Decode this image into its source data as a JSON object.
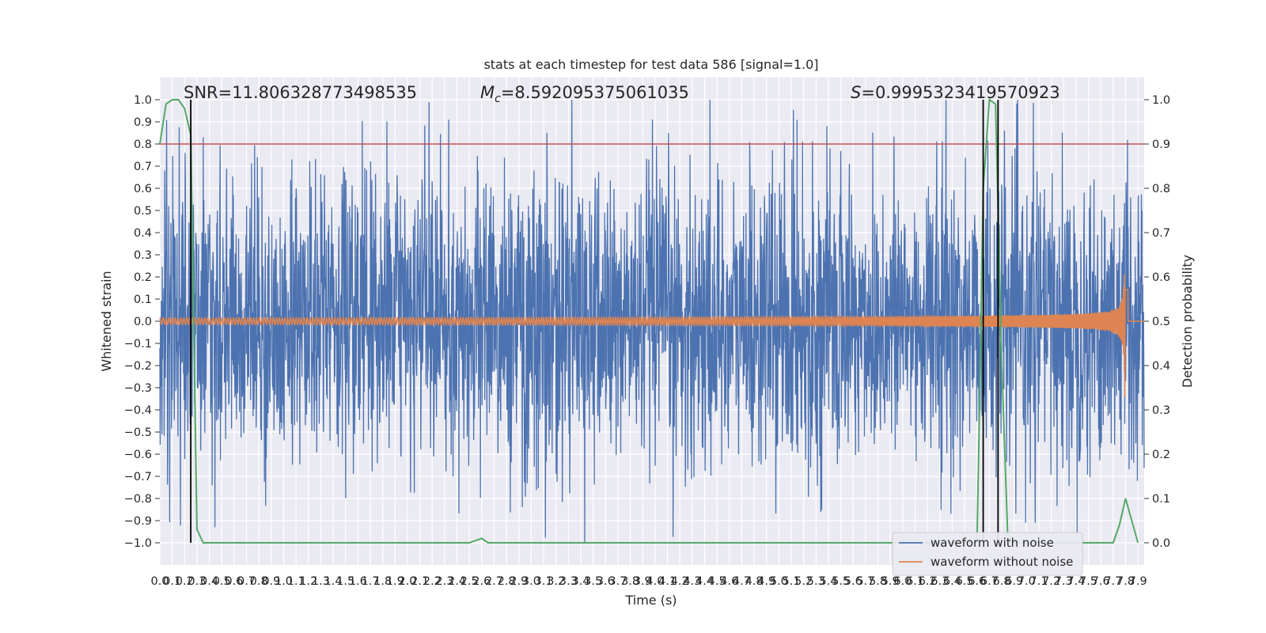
{
  "chart_data": {
    "type": "line",
    "title": "stats at each timestep for test data 586 [signal=1.0]",
    "xlabel": "Time (s)",
    "ylabel": "Whitened strain",
    "y2label": "Detection probability",
    "xlim": [
      0.0,
      7.95
    ],
    "ylim": [
      -1.1,
      1.1
    ],
    "y2lim": [
      -0.05,
      1.05
    ],
    "x_ticks": [
      0.0,
      0.1,
      0.2,
      0.3,
      0.4,
      0.5,
      0.6,
      0.7,
      0.8,
      0.9,
      1.0,
      1.1,
      1.2,
      1.3,
      1.4,
      1.5,
      1.6,
      1.7,
      1.8,
      1.9,
      2.0,
      2.1,
      2.2,
      2.3,
      2.4,
      2.5,
      2.6,
      2.7,
      2.8,
      2.9,
      3.0,
      3.1,
      3.2,
      3.3,
      3.4,
      3.5,
      3.6,
      3.7,
      3.8,
      3.9,
      4.0,
      4.1,
      4.2,
      4.3,
      4.4,
      4.5,
      4.6,
      4.7,
      4.8,
      4.9,
      5.0,
      5.1,
      5.2,
      5.3,
      5.4,
      5.5,
      5.6,
      5.7,
      5.8,
      5.9,
      6.0,
      6.1,
      6.2,
      6.3,
      6.4,
      6.5,
      6.6,
      6.7,
      6.8,
      6.9,
      7.0,
      7.1,
      7.2,
      7.3,
      7.4,
      7.5,
      7.6,
      7.7,
      7.8,
      7.9
    ],
    "y_ticks": [
      -1.0,
      -0.9,
      -0.8,
      -0.7,
      -0.6,
      -0.5,
      -0.4,
      -0.3,
      -0.2,
      -0.1,
      0.0,
      0.1,
      0.2,
      0.3,
      0.4,
      0.5,
      0.6,
      0.7,
      0.8,
      0.9,
      1.0
    ],
    "y2_ticks": [
      0.0,
      0.1,
      0.2,
      0.3,
      0.4,
      0.5,
      0.6,
      0.7,
      0.8,
      0.9,
      1.0
    ],
    "grid": true,
    "legend_position": "bottom-right",
    "annotations": {
      "snr": "SNR=11.806328773498535",
      "mc_symbol": "M",
      "mc_sub": "c",
      "mc_value": "=8.592095375061035",
      "s_symbol": "S",
      "s_value": "=0.9995323419570923"
    },
    "threshold": {
      "y": 0.8,
      "color": "#c44e52"
    },
    "vertical_lines": [
      0.25,
      6.65,
      6.77
    ],
    "series": [
      {
        "name": "waveform with noise",
        "color": "#4c72b0",
        "kind": "noise",
        "amplitude_range": [
          -1.0,
          1.0
        ]
      },
      {
        "name": "waveform without noise",
        "color": "#dd8452",
        "kind": "chirp",
        "start_amplitude": 0.015,
        "peak_amplitude": 0.35,
        "merger_time": 7.8
      },
      {
        "name": "",
        "color": "#55a868",
        "kind": "probability",
        "axis": "y2",
        "x": [
          0.0,
          0.05,
          0.1,
          0.15,
          0.2,
          0.25,
          0.3,
          0.35,
          0.4,
          0.5,
          1.0,
          1.5,
          2.0,
          2.4,
          2.5,
          2.55,
          2.6,
          2.65,
          2.7,
          3.0,
          4.0,
          5.0,
          6.0,
          6.5,
          6.6,
          6.62,
          6.65,
          6.7,
          6.75,
          6.8,
          6.85,
          6.9,
          7.0,
          7.5,
          7.7,
          7.75,
          7.8,
          7.85,
          7.9
        ],
        "y": [
          0.9,
          0.99,
          1.0,
          1.0,
          0.98,
          0.92,
          0.03,
          0.0,
          0.0,
          0.0,
          0.0,
          0.0,
          0.0,
          0.0,
          0.0,
          0.005,
          0.01,
          0.0,
          0.0,
          0.0,
          0.0,
          0.0,
          0.0,
          0.0,
          0.0,
          0.3,
          0.8,
          1.0,
          0.99,
          0.4,
          0.0,
          0.0,
          0.0,
          0.0,
          0.0,
          0.04,
          0.1,
          0.05,
          0.0
        ]
      }
    ]
  }
}
